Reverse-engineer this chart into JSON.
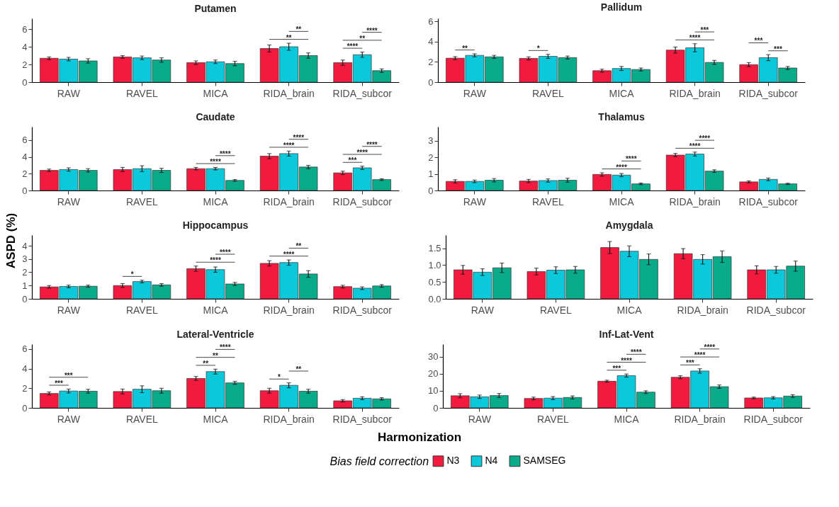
{
  "chart_data": [
    {
      "type": "bar",
      "title": "Putamen",
      "legend": "bottom",
      "legend_title": "Bias field correction",
      "categories": [
        "RAW",
        "RAVEL",
        "MICA",
        "RIDA_brain",
        "RIDA_subcor"
      ],
      "ylim": [
        0,
        7.2
      ],
      "yticks": [
        0,
        2,
        4,
        6
      ],
      "series": [
        {
          "name": "N3",
          "color": "#f21b3f",
          "values": [
            2.7,
            2.85,
            2.2,
            3.8,
            2.2
          ],
          "errors": [
            0.15,
            0.15,
            0.2,
            0.4,
            0.3
          ]
        },
        {
          "name": "N4",
          "color": "#0bc9db",
          "values": [
            2.6,
            2.75,
            2.3,
            4.0,
            3.1
          ],
          "errors": [
            0.2,
            0.2,
            0.2,
            0.4,
            0.3
          ]
        },
        {
          "name": "SAMSEG",
          "color": "#09ab8b",
          "values": [
            2.4,
            2.5,
            2.1,
            3.0,
            1.3
          ],
          "errors": [
            0.25,
            0.25,
            0.25,
            0.3,
            0.2
          ]
        }
      ],
      "annotations": [
        "**",
        "**",
        "****",
        "**",
        "****"
      ]
    },
    {
      "type": "bar",
      "title": "Pallidum",
      "categories": [
        "RAW",
        "RAVEL",
        "MICA",
        "RIDA_brain",
        "RIDA_subcor"
      ],
      "ylim": [
        0,
        6.3
      ],
      "yticks": [
        0,
        2,
        4,
        6
      ],
      "series": [
        {
          "name": "N3",
          "color": "#f21b3f",
          "values": [
            2.37,
            2.35,
            1.13,
            3.17,
            1.73
          ],
          "errors": [
            0.15,
            0.15,
            0.15,
            0.3,
            0.2
          ]
        },
        {
          "name": "N4",
          "color": "#0bc9db",
          "values": [
            2.65,
            2.55,
            1.35,
            3.4,
            2.42
          ],
          "errors": [
            0.15,
            0.2,
            0.2,
            0.4,
            0.3
          ]
        },
        {
          "name": "SAMSEG",
          "color": "#09ab8b",
          "values": [
            2.5,
            2.43,
            1.25,
            1.95,
            1.4
          ],
          "errors": [
            0.15,
            0.15,
            0.15,
            0.2,
            0.15
          ]
        }
      ],
      "annotations": [
        "**",
        "*",
        "***",
        "****",
        "***",
        "***"
      ]
    },
    {
      "type": "bar",
      "title": "Caudate",
      "categories": [
        "RAW",
        "RAVEL",
        "MICA",
        "RIDA_brain",
        "RIDA_subcor"
      ],
      "ylim": [
        0,
        7.6
      ],
      "yticks": [
        0,
        2,
        4,
        6
      ],
      "series": [
        {
          "name": "N3",
          "color": "#f21b3f",
          "values": [
            2.4,
            2.5,
            2.6,
            4.1,
            2.1
          ],
          "errors": [
            0.15,
            0.25,
            0.15,
            0.3,
            0.2
          ]
        },
        {
          "name": "N4",
          "color": "#0bc9db",
          "values": [
            2.5,
            2.6,
            2.6,
            4.4,
            2.7
          ],
          "errors": [
            0.2,
            0.35,
            0.15,
            0.3,
            0.2
          ]
        },
        {
          "name": "SAMSEG",
          "color": "#09ab8b",
          "values": [
            2.4,
            2.4,
            1.2,
            2.8,
            1.3
          ],
          "errors": [
            0.2,
            0.25,
            0.1,
            0.2,
            0.1
          ]
        }
      ],
      "annotations": [
        "****",
        "****",
        "****",
        "****",
        "****",
        "****",
        "***"
      ]
    },
    {
      "type": "bar",
      "title": "Thalamus",
      "categories": [
        "RAW",
        "RAVEL",
        "MICA",
        "RIDA_brain",
        "RIDA_subcor"
      ],
      "ylim": [
        0,
        3.85
      ],
      "yticks": [
        0,
        1,
        2,
        3
      ],
      "series": [
        {
          "name": "N3",
          "color": "#f21b3f",
          "values": [
            0.55,
            0.57,
            0.97,
            2.14,
            0.52
          ],
          "errors": [
            0.1,
            0.1,
            0.1,
            0.1,
            0.06
          ]
        },
        {
          "name": "N4",
          "color": "#0bc9db",
          "values": [
            0.55,
            0.6,
            0.93,
            2.2,
            0.67
          ],
          "errors": [
            0.08,
            0.1,
            0.1,
            0.12,
            0.08
          ]
        },
        {
          "name": "SAMSEG",
          "color": "#09ab8b",
          "values": [
            0.62,
            0.62,
            0.4,
            1.17,
            0.4
          ],
          "errors": [
            0.1,
            0.12,
            0.05,
            0.08,
            0.04
          ]
        }
      ],
      "annotations": [
        "****",
        "****",
        "****",
        "****"
      ]
    },
    {
      "type": "bar",
      "title": "Hippocampus",
      "ylabel": "ASPD (%)",
      "categories": [
        "RAW",
        "RAVEL",
        "MICA",
        "RIDA_brain",
        "RIDA_subcor"
      ],
      "ylim": [
        0,
        4.8
      ],
      "yticks": [
        0,
        1,
        2,
        3,
        4
      ],
      "series": [
        {
          "name": "N3",
          "color": "#f21b3f",
          "values": [
            0.9,
            1.0,
            2.27,
            2.67,
            0.92
          ],
          "errors": [
            0.1,
            0.15,
            0.2,
            0.2,
            0.1
          ]
        },
        {
          "name": "N4",
          "color": "#0bc9db",
          "values": [
            0.93,
            1.3,
            2.2,
            2.73,
            0.8
          ],
          "errors": [
            0.1,
            0.1,
            0.2,
            0.2,
            0.1
          ]
        },
        {
          "name": "SAMSEG",
          "color": "#09ab8b",
          "values": [
            0.95,
            1.05,
            1.12,
            1.87,
            0.97
          ],
          "errors": [
            0.08,
            0.1,
            0.12,
            0.25,
            0.1
          ]
        }
      ],
      "annotations": [
        "*",
        "****",
        "****",
        "**",
        "****"
      ]
    },
    {
      "type": "bar",
      "title": "Amygdala",
      "categories": [
        "RAW",
        "RAVEL",
        "MICA",
        "RIDA_brain",
        "RIDA_subcor"
      ],
      "ylim": [
        0,
        1.89
      ],
      "yticks": [
        {
          "value": 0,
          "label": "0.0"
        },
        0.5,
        {
          "value": 1,
          "label": "1.0"
        },
        1.5
      ],
      "series": [
        {
          "name": "N3",
          "color": "#f21b3f",
          "values": [
            0.86,
            0.81,
            1.52,
            1.34,
            0.86
          ],
          "errors": [
            0.13,
            0.1,
            0.18,
            0.15,
            0.12
          ]
        },
        {
          "name": "N4",
          "color": "#0bc9db",
          "values": [
            0.79,
            0.85,
            1.41,
            1.17,
            0.86
          ],
          "errors": [
            0.1,
            0.1,
            0.16,
            0.14,
            0.1
          ]
        },
        {
          "name": "SAMSEG",
          "color": "#09ab8b",
          "values": [
            0.92,
            0.86,
            1.17,
            1.25,
            0.97
          ],
          "errors": [
            0.14,
            0.1,
            0.16,
            0.17,
            0.15
          ]
        }
      ]
    },
    {
      "type": "bar",
      "title": "Lateral-Ventricle",
      "xlabel": "Harmonization",
      "categories": [
        "RAW",
        "RAVEL",
        "MICA",
        "RIDA_brain",
        "RIDA_subcor"
      ],
      "ylim": [
        0,
        6.5
      ],
      "yticks": [
        0,
        2,
        4,
        6
      ],
      "series": [
        {
          "name": "N3",
          "color": "#f21b3f",
          "values": [
            1.47,
            1.67,
            3.0,
            1.75,
            0.72
          ],
          "errors": [
            0.15,
            0.25,
            0.2,
            0.25,
            0.12
          ]
        },
        {
          "name": "N4",
          "color": "#0bc9db",
          "values": [
            1.72,
            1.9,
            3.7,
            2.3,
            0.98
          ],
          "errors": [
            0.2,
            0.35,
            0.25,
            0.25,
            0.15
          ]
        },
        {
          "name": "SAMSEG",
          "color": "#09ab8b",
          "values": [
            1.7,
            1.75,
            2.55,
            1.7,
            0.92
          ],
          "errors": [
            0.2,
            0.25,
            0.15,
            0.2,
            0.12
          ]
        }
      ],
      "annotations": [
        "***",
        "***",
        "****",
        "**",
        "**",
        "**",
        "*"
      ]
    },
    {
      "type": "bar",
      "title": "Inf-Lat-Vent",
      "categories": [
        "RAW",
        "RAVEL",
        "MICA",
        "RIDA_brain",
        "RIDA_subcor"
      ],
      "ylim": [
        0,
        37.3
      ],
      "yticks": [
        0,
        10,
        20,
        30
      ],
      "series": [
        {
          "name": "N3",
          "color": "#f21b3f",
          "values": [
            7.1,
            5.5,
            15.6,
            17.9,
            5.8
          ],
          "errors": [
            1.2,
            0.8,
            0.6,
            0.9,
            0.5
          ]
        },
        {
          "name": "N4",
          "color": "#0bc9db",
          "values": [
            6.5,
            5.7,
            18.9,
            21.6,
            5.9
          ],
          "errors": [
            1.0,
            0.9,
            0.9,
            1.3,
            0.7
          ]
        },
        {
          "name": "SAMSEG",
          "color": "#09ab8b",
          "values": [
            7.2,
            6.1,
            9.2,
            12.4,
            6.9
          ],
          "errors": [
            1.2,
            0.9,
            0.8,
            1.0,
            0.8
          ]
        }
      ],
      "annotations": [
        "****",
        "****",
        "***",
        "****",
        "****",
        "***"
      ]
    }
  ]
}
